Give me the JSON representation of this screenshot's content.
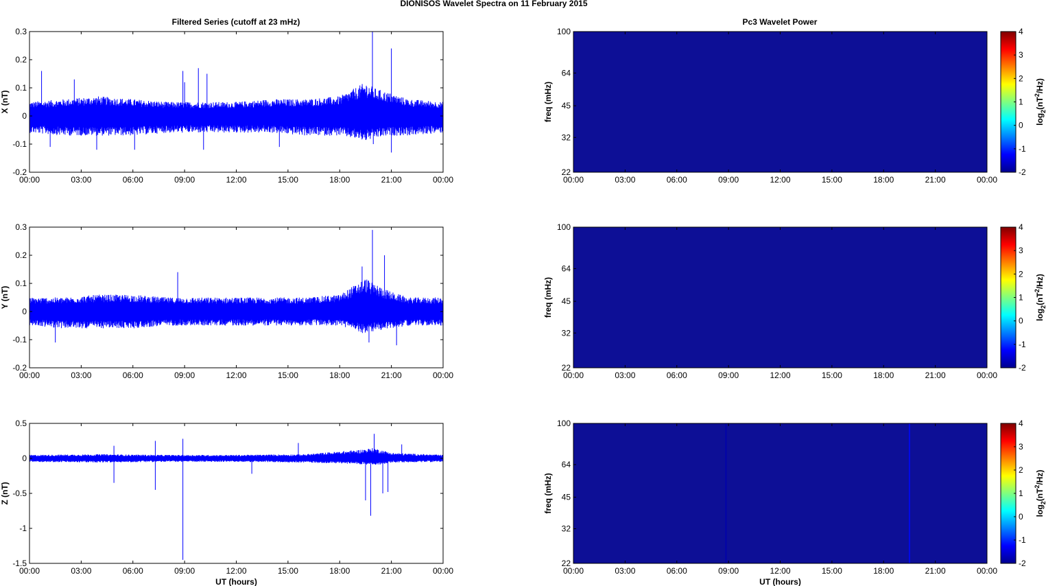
{
  "figure": {
    "title": "DIONISOS Wavelet Spectra on 11 February  2015",
    "left_title": "Filtered Series (cutoff at 23 mHz)",
    "right_title": "Pc3 Wavelet Power",
    "xlabel": "UT (hours)"
  },
  "colors": {
    "trace": "#0000ff",
    "power_background": "#0d0f96"
  },
  "colorbar": {
    "label_base": "log",
    "label_sub": "2",
    "label_mid": "(nT",
    "label_sup": "2",
    "label_end": "/Hz)",
    "ticks": [
      "4",
      "3",
      "2",
      "1",
      "0",
      "-1",
      "-2"
    ],
    "range": [
      -2,
      4
    ],
    "colormap": "jet"
  },
  "chart_data": [
    {
      "type": "line",
      "title": "Filtered Series (cutoff at 23 mHz)",
      "ylabel": "X (nT)",
      "xlabel": "",
      "x_ticks": [
        "00:00",
        "03:00",
        "06:00",
        "09:00",
        "12:00",
        "15:00",
        "18:00",
        "21:00",
        "00:00"
      ],
      "xlim_hours": [
        0,
        24
      ],
      "ylim": [
        -0.2,
        0.3
      ],
      "y_ticks": [
        "0.3",
        "0.2",
        "0.1",
        "0",
        "-0.1",
        "-0.2"
      ],
      "y_tick_values": [
        0.3,
        0.2,
        0.1,
        0,
        -0.1,
        -0.2
      ],
      "envelope": [
        {
          "hour": 0,
          "max": 0.05,
          "min": -0.06
        },
        {
          "hour": 2,
          "max": 0.06,
          "min": -0.07
        },
        {
          "hour": 4,
          "max": 0.07,
          "min": -0.07
        },
        {
          "hour": 6,
          "max": 0.06,
          "min": -0.07
        },
        {
          "hour": 8,
          "max": 0.05,
          "min": -0.06
        },
        {
          "hour": 10,
          "max": 0.05,
          "min": -0.06
        },
        {
          "hour": 12,
          "max": 0.05,
          "min": -0.06
        },
        {
          "hour": 14,
          "max": 0.06,
          "min": -0.06
        },
        {
          "hour": 16,
          "max": 0.06,
          "min": -0.07
        },
        {
          "hour": 18,
          "max": 0.07,
          "min": -0.07
        },
        {
          "hour": 19.5,
          "max": 0.12,
          "min": -0.09
        },
        {
          "hour": 20,
          "max": 0.1,
          "min": -0.08
        },
        {
          "hour": 21,
          "max": 0.08,
          "min": -0.07
        },
        {
          "hour": 22,
          "max": 0.06,
          "min": -0.07
        },
        {
          "hour": 24,
          "max": 0.05,
          "min": -0.06
        }
      ],
      "spikes": [
        {
          "hour": 0.7,
          "value": 0.16
        },
        {
          "hour": 1.2,
          "value": -0.11
        },
        {
          "hour": 2.6,
          "value": 0.13
        },
        {
          "hour": 3.9,
          "value": -0.12
        },
        {
          "hour": 6.1,
          "value": -0.12
        },
        {
          "hour": 8.9,
          "value": 0.16
        },
        {
          "hour": 9.0,
          "value": 0.12
        },
        {
          "hour": 9.8,
          "value": 0.17
        },
        {
          "hour": 10.3,
          "value": 0.15
        },
        {
          "hour": 10.1,
          "value": -0.12
        },
        {
          "hour": 14.5,
          "value": -0.11
        },
        {
          "hour": 19.9,
          "value": 0.3
        },
        {
          "hour": 19.95,
          "value": -0.1
        },
        {
          "hour": 21.0,
          "value": 0.24
        },
        {
          "hour": 21.0,
          "value": -0.13
        }
      ]
    },
    {
      "type": "line",
      "ylabel": "Y (nT)",
      "xlabel": "",
      "x_ticks": [
        "00:00",
        "03:00",
        "06:00",
        "09:00",
        "12:00",
        "15:00",
        "18:00",
        "21:00",
        "00:00"
      ],
      "xlim_hours": [
        0,
        24
      ],
      "ylim": [
        -0.2,
        0.3
      ],
      "y_ticks": [
        "0.3",
        "0.2",
        "0.1",
        "0",
        "-0.1",
        "-0.2"
      ],
      "y_tick_values": [
        0.3,
        0.2,
        0.1,
        0,
        -0.1,
        -0.2
      ],
      "envelope": [
        {
          "hour": 0,
          "max": 0.05,
          "min": -0.05
        },
        {
          "hour": 2,
          "max": 0.05,
          "min": -0.06
        },
        {
          "hour": 4,
          "max": 0.06,
          "min": -0.06
        },
        {
          "hour": 6,
          "max": 0.06,
          "min": -0.06
        },
        {
          "hour": 8,
          "max": 0.05,
          "min": -0.05
        },
        {
          "hour": 10,
          "max": 0.05,
          "min": -0.05
        },
        {
          "hour": 12,
          "max": 0.05,
          "min": -0.05
        },
        {
          "hour": 14,
          "max": 0.05,
          "min": -0.05
        },
        {
          "hour": 16,
          "max": 0.05,
          "min": -0.05
        },
        {
          "hour": 18,
          "max": 0.06,
          "min": -0.05
        },
        {
          "hour": 19.5,
          "max": 0.12,
          "min": -0.08
        },
        {
          "hour": 20,
          "max": 0.1,
          "min": -0.07
        },
        {
          "hour": 21,
          "max": 0.07,
          "min": -0.06
        },
        {
          "hour": 22,
          "max": 0.05,
          "min": -0.05
        },
        {
          "hour": 24,
          "max": 0.05,
          "min": -0.05
        }
      ],
      "spikes": [
        {
          "hour": 1.5,
          "value": -0.11
        },
        {
          "hour": 8.6,
          "value": 0.14
        },
        {
          "hour": 19.3,
          "value": 0.16
        },
        {
          "hour": 19.9,
          "value": 0.29
        },
        {
          "hour": 20.6,
          "value": 0.2
        },
        {
          "hour": 21.3,
          "value": -0.12
        },
        {
          "hour": 19.7,
          "value": -0.11
        }
      ]
    },
    {
      "type": "line",
      "ylabel": "Z (nT)",
      "xlabel": "UT (hours)",
      "x_ticks": [
        "00:00",
        "03:00",
        "06:00",
        "09:00",
        "12:00",
        "15:00",
        "18:00",
        "21:00",
        "00:00"
      ],
      "xlim_hours": [
        0,
        24
      ],
      "ylim": [
        -1.5,
        0.5
      ],
      "y_ticks": [
        "0.5",
        "0",
        "-0.5",
        "-1",
        "-1.5"
      ],
      "y_tick_values": [
        0.5,
        0,
        -0.5,
        -1,
        -1.5
      ],
      "envelope": [
        {
          "hour": 0,
          "max": 0.05,
          "min": -0.05
        },
        {
          "hour": 4,
          "max": 0.06,
          "min": -0.06
        },
        {
          "hour": 8,
          "max": 0.05,
          "min": -0.05
        },
        {
          "hour": 12,
          "max": 0.05,
          "min": -0.05
        },
        {
          "hour": 16,
          "max": 0.06,
          "min": -0.06
        },
        {
          "hour": 19,
          "max": 0.12,
          "min": -0.08
        },
        {
          "hour": 20,
          "max": 0.15,
          "min": -0.1
        },
        {
          "hour": 21,
          "max": 0.08,
          "min": -0.06
        },
        {
          "hour": 24,
          "max": 0.05,
          "min": -0.05
        }
      ],
      "spikes": [
        {
          "hour": 4.9,
          "value": -0.35
        },
        {
          "hour": 4.9,
          "value": 0.18
        },
        {
          "hour": 7.3,
          "value": -0.45
        },
        {
          "hour": 7.3,
          "value": 0.25
        },
        {
          "hour": 8.9,
          "value": -1.45
        },
        {
          "hour": 8.9,
          "value": 0.28
        },
        {
          "hour": 15.6,
          "value": 0.22
        },
        {
          "hour": 19.5,
          "value": -0.6
        },
        {
          "hour": 19.8,
          "value": -0.82
        },
        {
          "hour": 20.0,
          "value": 0.35
        },
        {
          "hour": 20.5,
          "value": -0.5
        },
        {
          "hour": 20.8,
          "value": -0.48
        },
        {
          "hour": 21.6,
          "value": 0.2
        },
        {
          "hour": 12.9,
          "value": -0.22
        }
      ]
    },
    {
      "type": "heatmap",
      "title": "Pc3 Wavelet Power",
      "ylabel": "freq (mHz)",
      "xlabel": "",
      "x_ticks": [
        "00:00",
        "03:00",
        "06:00",
        "09:00",
        "12:00",
        "15:00",
        "18:00",
        "21:00",
        "00:00"
      ],
      "xlim_hours": [
        0,
        24
      ],
      "y_ticks": [
        "100",
        "64",
        "45",
        "32",
        "22"
      ],
      "y_tick_values": [
        100,
        64,
        45,
        32,
        22
      ],
      "y_scale": "log",
      "ylim": [
        22,
        100
      ],
      "color_range": [
        -2,
        4
      ],
      "background_value": -2,
      "streaks": []
    },
    {
      "type": "heatmap",
      "ylabel": "freq (mHz)",
      "xlabel": "",
      "x_ticks": [
        "00:00",
        "03:00",
        "06:00",
        "09:00",
        "12:00",
        "15:00",
        "18:00",
        "21:00",
        "00:00"
      ],
      "xlim_hours": [
        0,
        24
      ],
      "y_ticks": [
        "100",
        "64",
        "45",
        "32",
        "22"
      ],
      "y_tick_values": [
        100,
        64,
        45,
        32,
        22
      ],
      "y_scale": "log",
      "ylim": [
        22,
        100
      ],
      "color_range": [
        -2,
        4
      ],
      "background_value": -2,
      "streaks": []
    },
    {
      "type": "heatmap",
      "ylabel": "freq (mHz)",
      "xlabel": "UT (hours)",
      "x_ticks": [
        "00:00",
        "03:00",
        "06:00",
        "09:00",
        "12:00",
        "15:00",
        "18:00",
        "21:00",
        "00:00"
      ],
      "xlim_hours": [
        0,
        24
      ],
      "y_ticks": [
        "100",
        "64",
        "45",
        "32",
        "22"
      ],
      "y_tick_values": [
        100,
        64,
        45,
        32,
        22
      ],
      "y_scale": "log",
      "ylim": [
        22,
        100
      ],
      "color_range": [
        -2,
        4
      ],
      "background_value": -2,
      "streaks": [
        {
          "hour": 8.85,
          "value": -1.8
        },
        {
          "hour": 19.5,
          "value": -1.2
        }
      ]
    }
  ]
}
